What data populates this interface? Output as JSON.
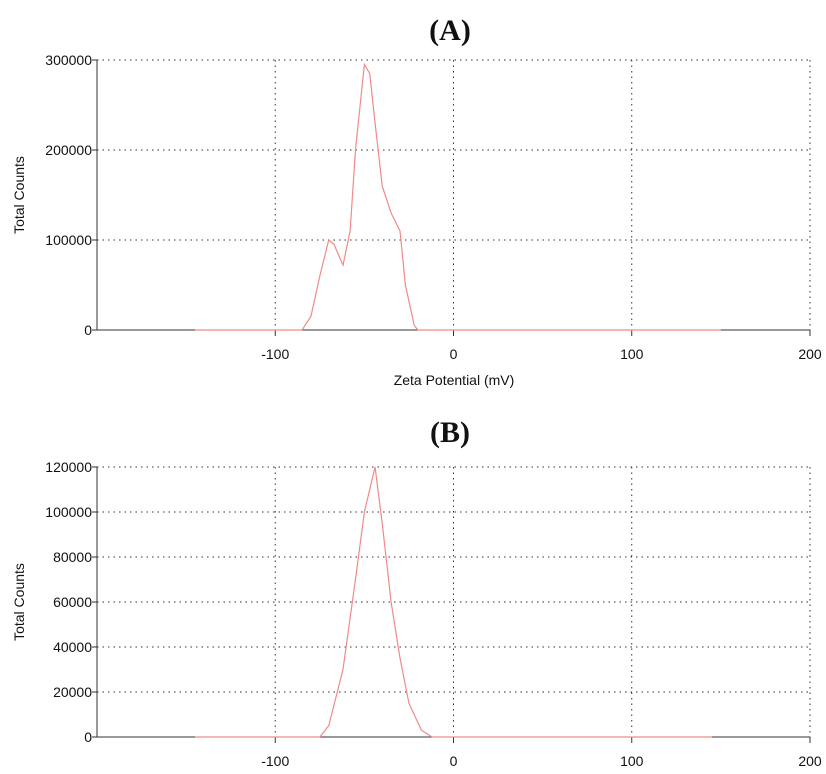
{
  "chart_data": [
    {
      "type": "line",
      "title": "(A)",
      "x_label": "Zeta Potential (mV)",
      "y_label": "Total Counts",
      "x": [
        -145,
        -85,
        -80,
        -75,
        -70,
        -67,
        -62,
        -58,
        -55,
        -50,
        -47,
        -44,
        -40,
        -35,
        -30,
        -27,
        -22,
        -20,
        150
      ],
      "series": [
        {
          "color": "#f08a8a",
          "values": [
            0,
            0,
            15000,
            60000,
            100000,
            95000,
            72000,
            110000,
            200000,
            295000,
            285000,
            230000,
            160000,
            130000,
            110000,
            50000,
            5000,
            0,
            0
          ]
        }
      ],
      "xlim": [
        -200,
        200
      ],
      "xticks": [
        -100,
        0,
        100,
        200
      ],
      "ylim": [
        0,
        300000
      ],
      "yticks": [
        0,
        100000,
        200000,
        300000
      ],
      "grid": true
    },
    {
      "type": "line",
      "title": "(B)",
      "y_label": "Total Counts",
      "x": [
        -145,
        -75,
        -70,
        -62,
        -55,
        -50,
        -44,
        -40,
        -35,
        -30,
        -25,
        -18,
        -12,
        145
      ],
      "series": [
        {
          "color": "#f08a8a",
          "values": [
            0,
            0,
            5000,
            30000,
            70000,
            100000,
            120000,
            95000,
            60000,
            35000,
            15000,
            3000,
            0,
            0
          ]
        }
      ],
      "xlim": [
        -200,
        200
      ],
      "xticks": [
        -100,
        0,
        100,
        200
      ],
      "ylim": [
        0,
        120000
      ],
      "yticks": [
        0,
        20000,
        40000,
        60000,
        80000,
        100000,
        120000
      ],
      "grid": true
    }
  ]
}
